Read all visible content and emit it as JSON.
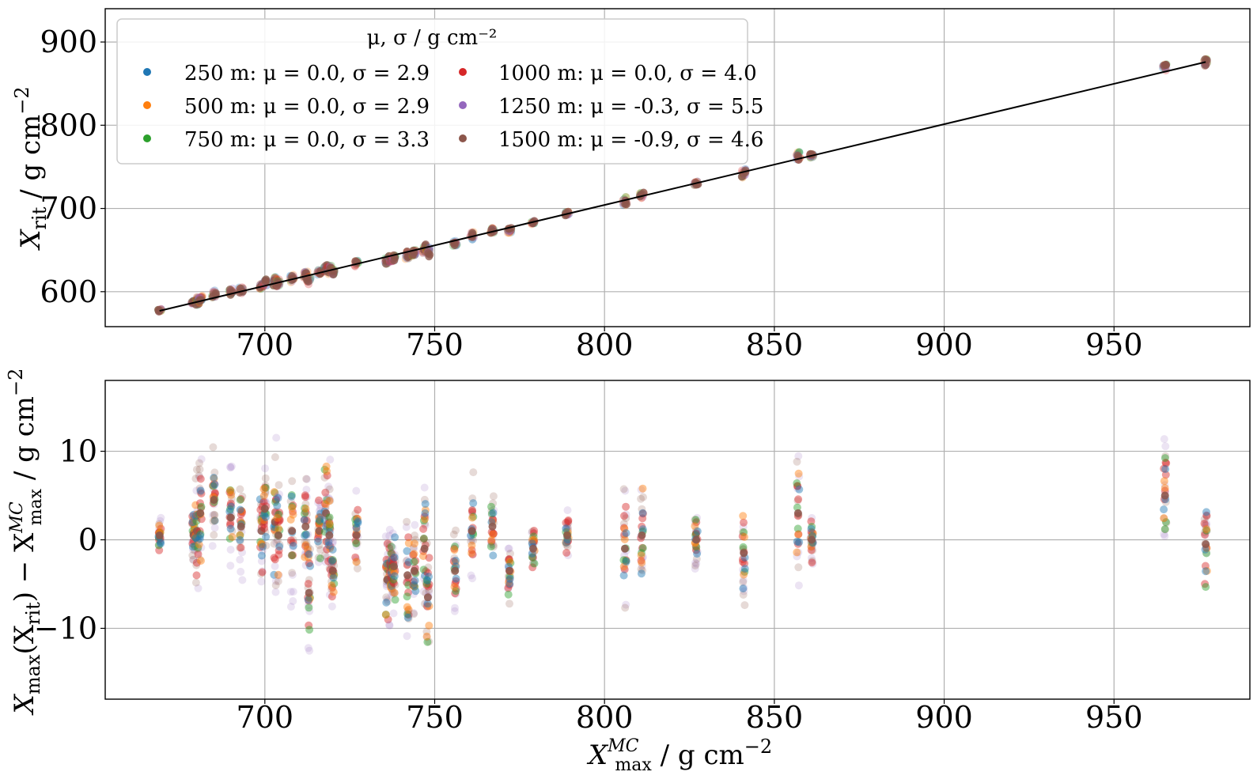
{
  "chart_data": [
    {
      "type": "scatter",
      "panel": "top",
      "ylabel_main": "X",
      "ylabel_sub": "rit",
      "ylabel_unit": " / g cm",
      "ylabel_exp": "−2",
      "xlim": [
        653,
        990
      ],
      "ylim": [
        558,
        940
      ],
      "xticks": [
        700,
        750,
        800,
        850,
        900,
        950
      ],
      "yticks": [
        600,
        700,
        800,
        900
      ],
      "grid": true,
      "legend": {
        "title": "μ, σ  / g cm⁻²",
        "placement": "top-left",
        "entries": [
          {
            "label": "250 m:  μ = 0.0, σ = 2.9",
            "color": "#1f77b4"
          },
          {
            "label": "500 m:  μ = 0.0, σ = 2.9",
            "color": "#ff7f0e"
          },
          {
            "label": "750 m:  μ = 0.0, σ = 3.3",
            "color": "#2ca02c"
          },
          {
            "label": "1000 m:  μ = 0.0, σ = 4.0",
            "color": "#d62728"
          },
          {
            "label": "1250 m:  μ = -0.3, σ = 5.5",
            "color": "#9467bd"
          },
          {
            "label": "1500 m:  μ = -0.9, σ = 4.6",
            "color": "#8c564b"
          }
        ]
      },
      "fit_line": {
        "x": [
          669,
          977
        ],
        "y": [
          577,
          876
        ],
        "color": "#000000"
      },
      "x_columns": [
        669,
        679,
        680,
        681,
        685,
        690,
        693,
        699,
        700,
        703,
        704,
        708,
        712,
        713,
        716,
        718,
        719,
        720,
        727,
        736,
        737,
        738,
        742,
        744,
        747,
        748,
        756,
        761,
        767,
        772,
        779,
        789,
        806,
        811,
        827,
        841,
        857,
        861,
        965,
        977
      ]
    },
    {
      "type": "scatter",
      "panel": "bottom",
      "ylabel_main": "X",
      "ylabel_sub": "max",
      "ylabel_mid": "(X",
      "ylabel_sub2": "rit",
      "ylabel_after": ") − X",
      "ylabel_sub3": "max",
      "ylabel_sup3": "MC",
      "ylabel_unit": " / g cm",
      "ylabel_exp": "−2",
      "xlabel_main": "X",
      "xlabel_sub": "max",
      "xlabel_sup": "MC",
      "xlabel_unit": " / g cm",
      "xlabel_exp": "−2",
      "xlim": [
        653,
        990
      ],
      "ylim": [
        -18,
        18
      ],
      "xticks": [
        700,
        750,
        800,
        850,
        900,
        950
      ],
      "yticks": [
        -10,
        0,
        10
      ],
      "ytick_labels": [
        "−10",
        "0",
        "10"
      ],
      "grid": true,
      "column_offsets": [
        0.5,
        0.5,
        1.0,
        3.0,
        4.5,
        2.5,
        1.5,
        1.0,
        3.5,
        2.0,
        0.5,
        1.0,
        1.5,
        -6.0,
        1.0,
        3.0,
        0.5,
        -3.5,
        0.5,
        -4.5,
        -3.0,
        -3.0,
        -4.0,
        -3.5,
        -1.0,
        -6.5,
        -3.5,
        1.0,
        1.5,
        -3.5,
        -1.0,
        0.5,
        -1.0,
        0.5,
        0.0,
        -1.5,
        3.0,
        0.0,
        5.0,
        -0.5
      ],
      "column_spreads": [
        2.0,
        3.0,
        6.0,
        6.0,
        5.5,
        5.0,
        5.0,
        5.0,
        5.0,
        7.0,
        6.0,
        6.0,
        5.0,
        6.0,
        4.0,
        6.0,
        6.0,
        4.0,
        4.5,
        5.0,
        5.0,
        5.0,
        6.0,
        5.0,
        6.0,
        7.0,
        4.0,
        6.0,
        4.0,
        3.5,
        2.5,
        2.5,
        6.5,
        5.5,
        2.5,
        6.5,
        6.5,
        3.0,
        6.5,
        5.0
      ]
    }
  ]
}
